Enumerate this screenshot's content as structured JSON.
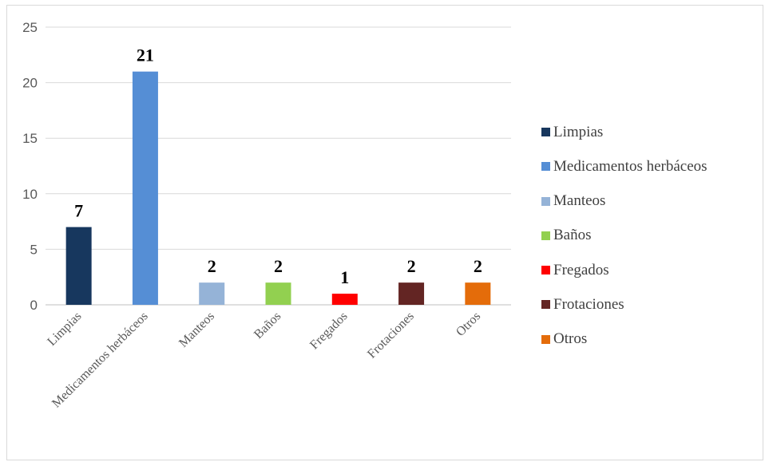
{
  "chart_data": {
    "type": "bar",
    "categories": [
      "Limpias",
      "Medicamentos herbáceos",
      "Manteos",
      "Baños",
      "Fregados",
      "Frotaciones",
      "Otros"
    ],
    "values": [
      7,
      21,
      2,
      2,
      1,
      2,
      2
    ],
    "colors": [
      "#17375e",
      "#558ed5",
      "#95b3d7",
      "#92d050",
      "#ff0000",
      "#632523",
      "#e46c0a"
    ],
    "ylim": [
      0,
      25
    ],
    "yticks": [
      0,
      5,
      10,
      15,
      20,
      25
    ],
    "grid": true,
    "legend_position": "right",
    "data_labels": true
  }
}
